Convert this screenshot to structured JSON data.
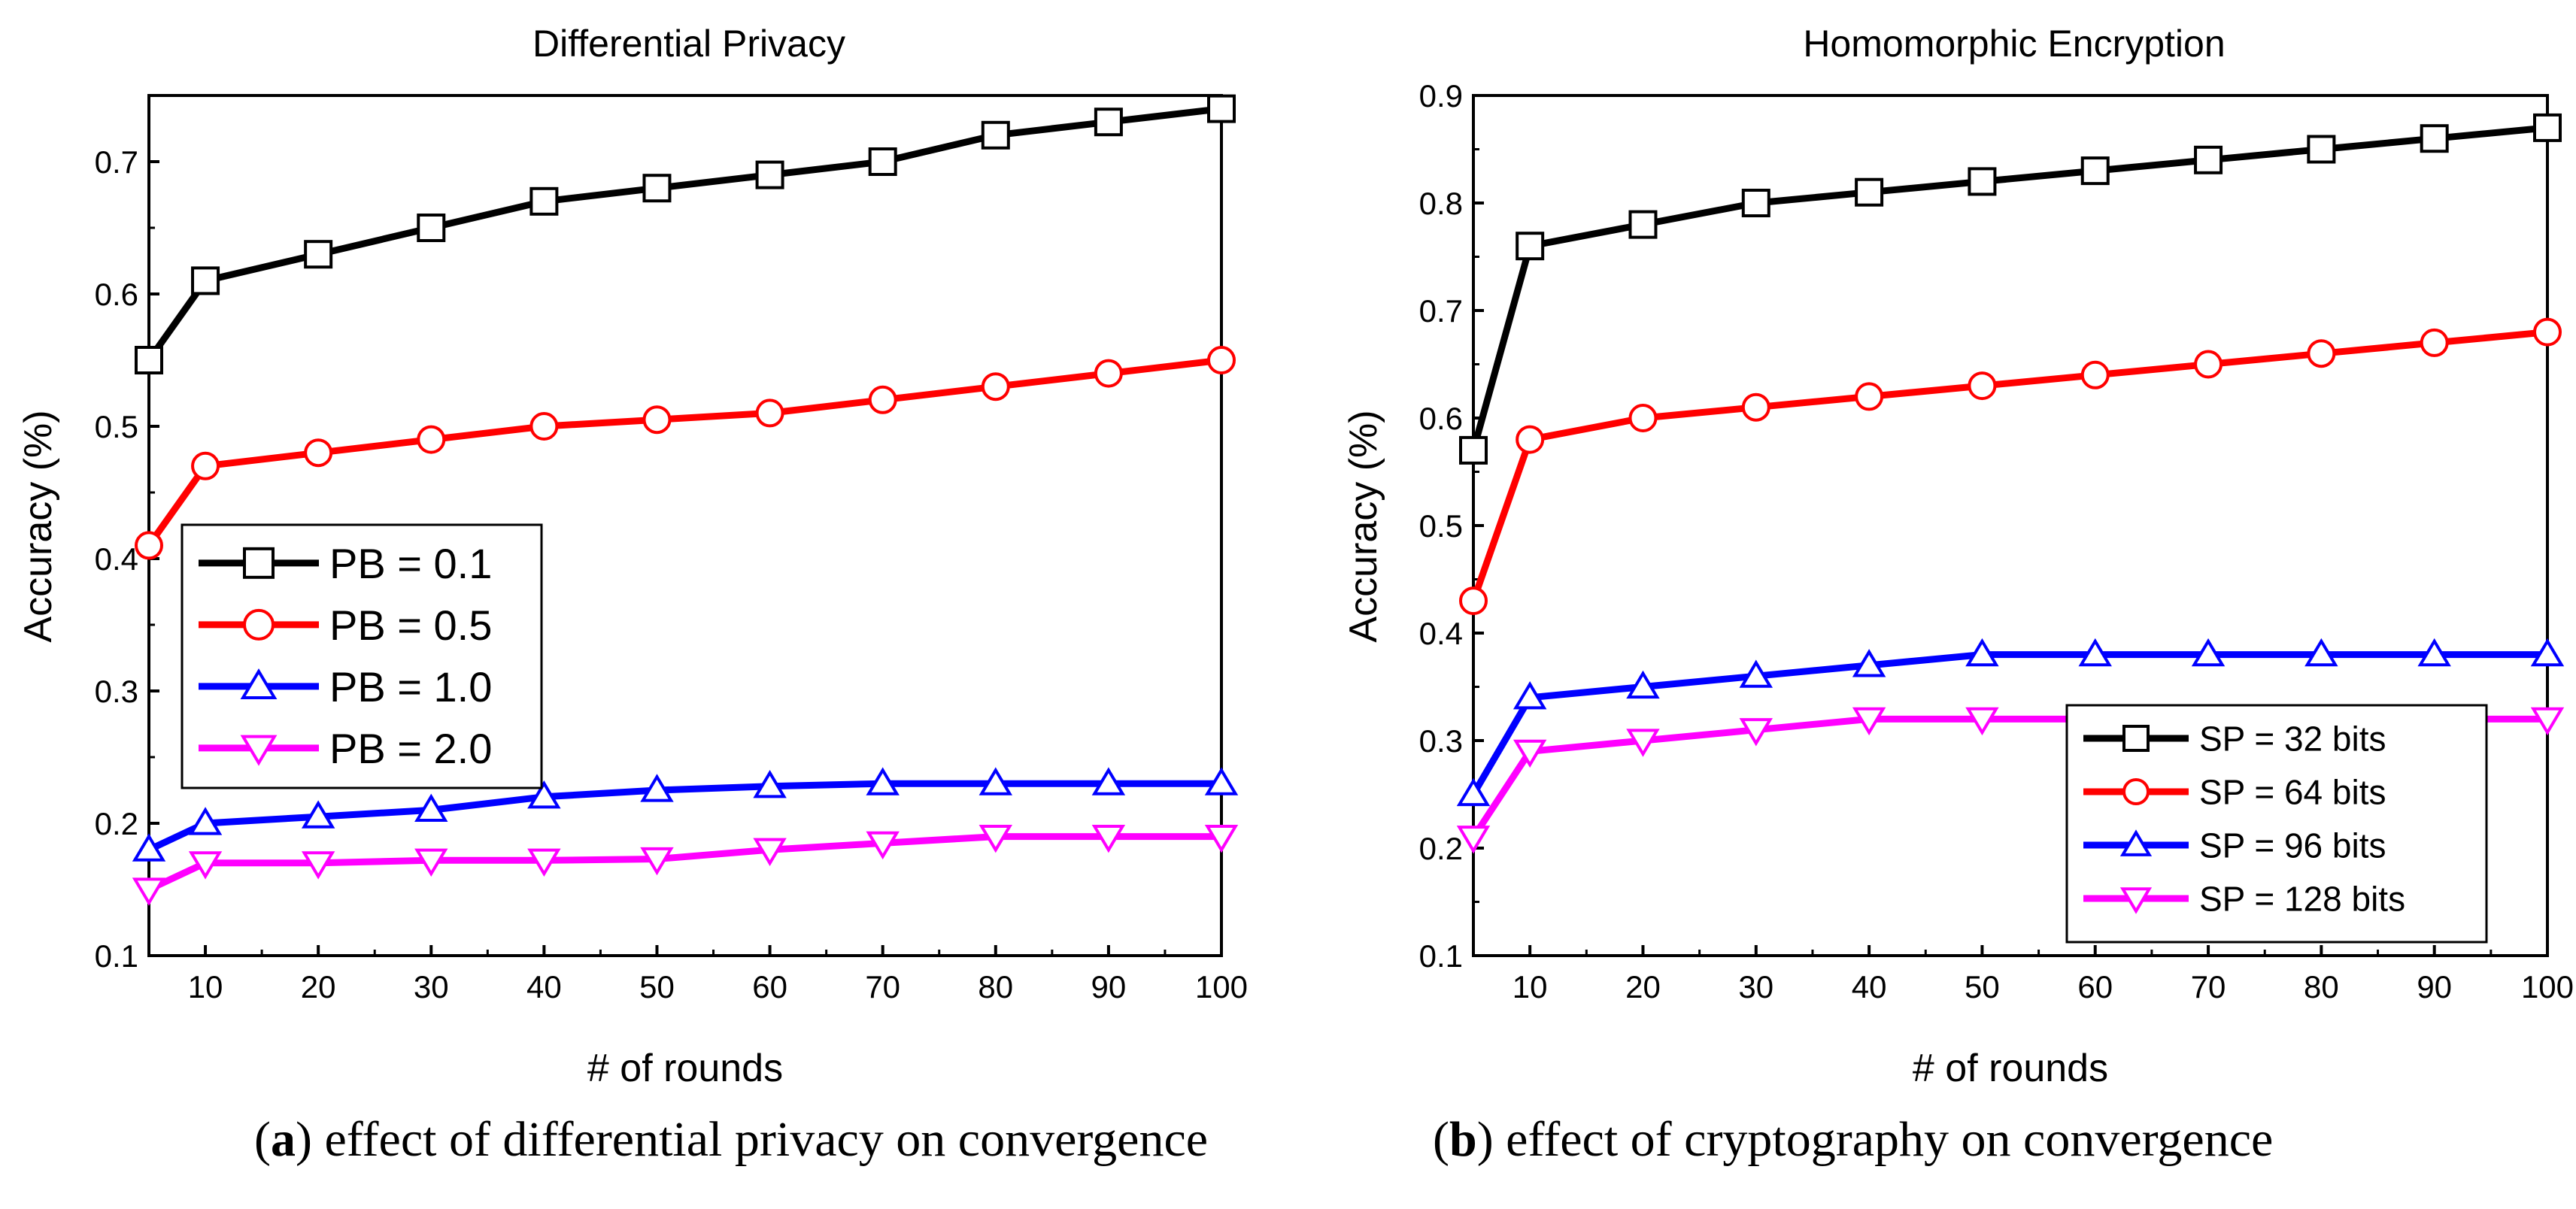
{
  "chart_data": [
    {
      "type": "line",
      "title": "Differential Privacy",
      "xlabel": "# of rounds",
      "ylabel": "Accuracy (%)",
      "caption_letter": "a",
      "caption_text": ") effect of differential privacy on convergence",
      "x": [
        5,
        10,
        20,
        30,
        40,
        50,
        60,
        70,
        80,
        90,
        100
      ],
      "xticks": [
        "10",
        "20",
        "30",
        "40",
        "50",
        "60",
        "70",
        "80",
        "90",
        "100"
      ],
      "xlim": [
        5,
        100
      ],
      "ylim": [
        0.1,
        0.75
      ],
      "yticks": [
        "0.1",
        "0.2",
        "0.3",
        "0.4",
        "0.5",
        "0.6",
        "0.7"
      ],
      "grid": false,
      "legend_position": "center-left",
      "series": [
        {
          "name": "PB = 0.1",
          "color": "#000000",
          "marker": "square",
          "values": [
            0.55,
            0.61,
            0.63,
            0.65,
            0.67,
            0.68,
            0.69,
            0.7,
            0.72,
            0.73,
            0.74
          ]
        },
        {
          "name": "PB = 0.5",
          "color": "#ff0000",
          "marker": "circle",
          "values": [
            0.41,
            0.47,
            0.48,
            0.49,
            0.5,
            0.505,
            0.51,
            0.52,
            0.53,
            0.54,
            0.55
          ]
        },
        {
          "name": "PB = 1.0",
          "color": "#0000ff",
          "marker": "triangle-up",
          "values": [
            0.18,
            0.2,
            0.205,
            0.21,
            0.22,
            0.225,
            0.228,
            0.23,
            0.23,
            0.23,
            0.23
          ]
        },
        {
          "name": "PB = 2.0",
          "color": "#ff00ff",
          "marker": "triangle-down",
          "values": [
            0.15,
            0.17,
            0.17,
            0.172,
            0.172,
            0.173,
            0.18,
            0.185,
            0.19,
            0.19,
            0.19
          ]
        }
      ]
    },
    {
      "type": "line",
      "title": "Homomorphic Encryption",
      "xlabel": "# of rounds",
      "ylabel": "Accuracy (%)",
      "caption_letter": "b",
      "caption_text": ") effect of cryptography on convergence",
      "x": [
        5,
        10,
        20,
        30,
        40,
        50,
        60,
        70,
        80,
        90,
        100
      ],
      "xticks": [
        "10",
        "20",
        "30",
        "40",
        "50",
        "60",
        "70",
        "80",
        "90",
        "100"
      ],
      "xlim": [
        5,
        100
      ],
      "ylim": [
        0.1,
        0.9
      ],
      "yticks": [
        "0.1",
        "0.2",
        "0.3",
        "0.4",
        "0.5",
        "0.6",
        "0.7",
        "0.8",
        "0.9"
      ],
      "grid": false,
      "legend_position": "bottom-right",
      "series": [
        {
          "name": "SP = 32 bits",
          "color": "#000000",
          "marker": "square",
          "values": [
            0.57,
            0.76,
            0.78,
            0.8,
            0.81,
            0.82,
            0.83,
            0.84,
            0.85,
            0.86,
            0.87
          ]
        },
        {
          "name": "SP = 64 bits",
          "color": "#ff0000",
          "marker": "circle",
          "values": [
            0.43,
            0.58,
            0.6,
            0.61,
            0.62,
            0.63,
            0.64,
            0.65,
            0.66,
            0.67,
            0.68
          ]
        },
        {
          "name": "SP = 96 bits",
          "color": "#0000ff",
          "marker": "triangle-up",
          "values": [
            0.25,
            0.34,
            0.35,
            0.36,
            0.37,
            0.38,
            0.38,
            0.38,
            0.38,
            0.38,
            0.38
          ]
        },
        {
          "name": "SP = 128 bits",
          "color": "#ff00ff",
          "marker": "triangle-down",
          "values": [
            0.21,
            0.29,
            0.3,
            0.31,
            0.32,
            0.32,
            0.32,
            0.32,
            0.32,
            0.32,
            0.32
          ]
        }
      ]
    }
  ]
}
